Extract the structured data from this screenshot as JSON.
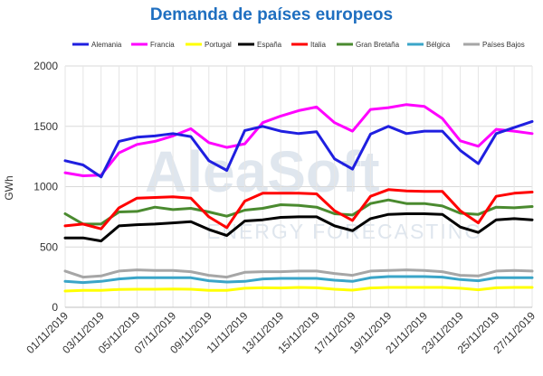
{
  "chart_data": {
    "type": "line",
    "title": "Demanda de países europeos",
    "ylabel": "GWh",
    "xlabel": "",
    "ylim": [
      0,
      2000
    ],
    "yticks": [
      0,
      500,
      1000,
      1500,
      2000
    ],
    "grid": true,
    "legend_position": "top",
    "x": [
      "01/11/2019",
      "02/11/2019",
      "03/11/2019",
      "04/11/2019",
      "05/11/2019",
      "06/11/2019",
      "07/11/2019",
      "08/11/2019",
      "09/11/2019",
      "10/11/2019",
      "11/11/2019",
      "12/11/2019",
      "13/11/2019",
      "14/11/2019",
      "15/11/2019",
      "16/11/2019",
      "17/11/2019",
      "18/11/2019",
      "19/11/2019",
      "20/11/2019",
      "21/11/2019",
      "22/11/2019",
      "23/11/2019",
      "24/11/2019",
      "25/11/2019",
      "26/11/2019",
      "27/11/2019"
    ],
    "xtick_labels": [
      "01/11/2019",
      "03/11/2019",
      "05/11/2019",
      "07/11/2019",
      "09/11/2019",
      "11/11/2019",
      "13/11/2019",
      "15/11/2019",
      "17/11/2019",
      "19/11/2019",
      "21/11/2019",
      "23/11/2019",
      "25/11/2019",
      "27/11/2019"
    ],
    "series": [
      {
        "name": "Alemania",
        "color": "#1f1fe0",
        "values": [
          1215,
          1180,
          1080,
          1375,
          1410,
          1420,
          1440,
          1415,
          1215,
          1135,
          1465,
          1500,
          1460,
          1440,
          1455,
          1230,
          1145,
          1435,
          1500,
          1440,
          1460,
          1460,
          1300,
          1190,
          1440,
          1490,
          1540
        ]
      },
      {
        "name": "Francia",
        "color": "#ff00ff",
        "values": [
          1115,
          1090,
          1095,
          1280,
          1350,
          1375,
          1420,
          1480,
          1365,
          1325,
          1355,
          1530,
          1585,
          1630,
          1660,
          1530,
          1460,
          1640,
          1655,
          1680,
          1665,
          1565,
          1380,
          1335,
          1475,
          1460,
          1440
        ]
      },
      {
        "name": "Portugal",
        "color": "#ffff00",
        "values": [
          135,
          140,
          140,
          148,
          150,
          150,
          152,
          150,
          140,
          140,
          158,
          162,
          160,
          165,
          162,
          150,
          142,
          160,
          165,
          165,
          165,
          165,
          158,
          145,
          162,
          165,
          165
        ]
      },
      {
        "name": "España",
        "color": "#000000",
        "values": [
          575,
          575,
          550,
          675,
          685,
          690,
          700,
          710,
          645,
          595,
          715,
          725,
          745,
          750,
          750,
          675,
          635,
          735,
          770,
          775,
          775,
          770,
          665,
          620,
          725,
          735,
          725
        ]
      },
      {
        "name": "Italia",
        "color": "#ff0000",
        "values": [
          675,
          690,
          650,
          825,
          905,
          910,
          915,
          905,
          750,
          660,
          880,
          945,
          945,
          945,
          940,
          800,
          720,
          920,
          975,
          965,
          960,
          960,
          800,
          700,
          920,
          945,
          955
        ]
      },
      {
        "name": "Gran Bretaña",
        "color": "#4a8a2f",
        "values": [
          775,
          690,
          690,
          790,
          795,
          830,
          810,
          820,
          790,
          755,
          805,
          820,
          850,
          845,
          830,
          775,
          765,
          860,
          890,
          860,
          860,
          840,
          780,
          770,
          830,
          825,
          835
        ]
      },
      {
        "name": "Bélgica",
        "color": "#3aa5c8",
        "values": [
          215,
          205,
          215,
          235,
          245,
          245,
          245,
          245,
          220,
          210,
          215,
          235,
          240,
          240,
          240,
          225,
          215,
          245,
          255,
          255,
          255,
          250,
          230,
          220,
          245,
          245,
          245
        ]
      },
      {
        "name": "Países Bajos",
        "color": "#a6a6a6",
        "values": [
          300,
          250,
          260,
          300,
          310,
          305,
          305,
          295,
          265,
          250,
          290,
          295,
          295,
          300,
          300,
          280,
          265,
          300,
          305,
          310,
          305,
          295,
          265,
          260,
          300,
          305,
          300
        ]
      }
    ]
  }
}
